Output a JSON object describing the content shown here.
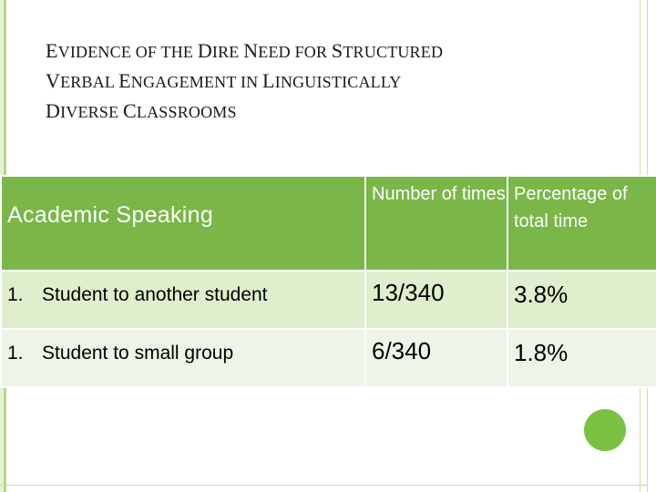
{
  "title": {
    "line1": [
      {
        "t": "E",
        "big": true
      },
      {
        "t": "VIDENCE OF THE ",
        "big": false
      },
      {
        "t": "D",
        "big": true
      },
      {
        "t": "IRE ",
        "big": false
      },
      {
        "t": "N",
        "big": true
      },
      {
        "t": "EED FOR ",
        "big": false
      },
      {
        "t": "S",
        "big": true
      },
      {
        "t": "TRUCTURED",
        "big": false
      }
    ],
    "line2": [
      {
        "t": "V",
        "big": true
      },
      {
        "t": "ERBAL ",
        "big": false
      },
      {
        "t": "E",
        "big": true
      },
      {
        "t": "NGAGEMENT IN ",
        "big": false
      },
      {
        "t": "L",
        "big": true
      },
      {
        "t": "INGUISTICALLY",
        "big": false
      }
    ],
    "line3": [
      {
        "t": "D",
        "big": true
      },
      {
        "t": "IVERSE ",
        "big": false
      },
      {
        "t": "C",
        "big": true
      },
      {
        "t": "LASSROOMS",
        "big": false
      }
    ]
  },
  "table": {
    "headers": [
      "Academic  Speaking",
      "Number of times",
      "Percentage of total time"
    ],
    "rows": [
      {
        "index": "1.",
        "label": "Student to another student",
        "number": "13/340",
        "percent": "3.8%"
      },
      {
        "index": "1.",
        "label": "Student to small group",
        "number": "6/340",
        "percent": "1.8%"
      }
    ]
  },
  "colors": {
    "header_bg": "#7ab648",
    "row1_bg": "#dfeecd",
    "row2_bg": "#eef5e6",
    "accent_circle": "#7ac142"
  }
}
